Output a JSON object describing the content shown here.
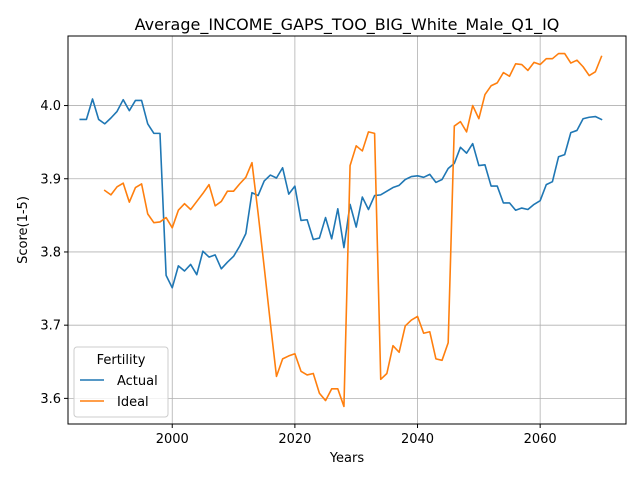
{
  "chart_data": {
    "type": "line",
    "title": "Average_INCOME_GAPS_TOO_BIG_White_Male_Q1_IQ",
    "xlabel": "Years",
    "ylabel": "Score(1-5)",
    "xlim": [
      1983,
      2074
    ],
    "ylim": [
      3.565,
      4.095
    ],
    "xticks": [
      2000,
      2020,
      2040,
      2060
    ],
    "yticks": [
      3.6,
      3.7,
      3.8,
      3.9,
      4.0
    ],
    "ytick_labels": [
      "3.6",
      "3.7",
      "3.8",
      "3.9",
      "4.0"
    ],
    "grid": true,
    "legend": {
      "title": "Fertility",
      "position": "lower-left"
    },
    "series": [
      {
        "name": "Actual",
        "color": "#1f77b4",
        "x": [
          1985,
          1986,
          1987,
          1988,
          1989,
          1990,
          1991,
          1992,
          1993,
          1994,
          1995,
          1996,
          1997,
          1998,
          1999,
          2000,
          2001,
          2002,
          2003,
          2004,
          2005,
          2006,
          2007,
          2008,
          2009,
          2010,
          2011,
          2012,
          2013,
          2014,
          2015,
          2016,
          2017,
          2018,
          2019,
          2020,
          2021,
          2022,
          2023,
          2024,
          2025,
          2026,
          2027,
          2028,
          2029,
          2030,
          2031,
          2032,
          2033,
          2034,
          2035,
          2036,
          2037,
          2038,
          2039,
          2040,
          2041,
          2042,
          2043,
          2044,
          2045,
          2046,
          2047,
          2048,
          2049,
          2050,
          2051,
          2052,
          2053,
          2054,
          2055,
          2056,
          2057,
          2058,
          2059,
          2060,
          2061,
          2062,
          2063,
          2064,
          2065,
          2066,
          2067,
          2068,
          2069,
          2070
        ],
        "values": [
          3.981,
          3.981,
          4.009,
          3.981,
          3.975,
          3.983,
          3.992,
          4.008,
          3.993,
          4.007,
          4.007,
          3.975,
          3.962,
          3.962,
          3.768,
          3.751,
          3.781,
          3.774,
          3.783,
          3.769,
          3.801,
          3.793,
          3.796,
          3.777,
          3.786,
          3.794,
          3.808,
          3.825,
          3.881,
          3.877,
          3.897,
          3.905,
          3.901,
          3.915,
          3.879,
          3.89,
          3.843,
          3.844,
          3.817,
          3.819,
          3.847,
          3.818,
          3.859,
          3.806,
          3.865,
          3.834,
          3.875,
          3.858,
          3.877,
          3.878,
          3.883,
          3.888,
          3.891,
          3.899,
          3.903,
          3.904,
          3.902,
          3.906,
          3.895,
          3.899,
          3.914,
          3.921,
          3.943,
          3.935,
          3.948,
          3.918,
          3.919,
          3.89,
          3.89,
          3.867,
          3.867,
          3.857,
          3.86,
          3.858,
          3.865,
          3.87,
          3.892,
          3.896,
          3.93,
          3.933,
          3.963,
          3.966,
          3.982,
          3.984,
          3.985,
          3.981
        ]
      },
      {
        "name": "Ideal",
        "color": "#ff7f0e",
        "x": [
          1989,
          1990,
          1991,
          1992,
          1993,
          1994,
          1995,
          1996,
          1997,
          1998,
          1999,
          2000,
          2001,
          2002,
          2003,
          2004,
          2005,
          2006,
          2007,
          2008,
          2009,
          2010,
          2011,
          2012,
          2013,
          2014,
          2015,
          2016,
          2017,
          2018,
          2019,
          2020,
          2021,
          2022,
          2023,
          2024,
          2025,
          2026,
          2027,
          2028,
          2029,
          2030,
          2031,
          2032,
          2033,
          2034,
          2035,
          2036,
          2037,
          2038,
          2039,
          2040,
          2041,
          2042,
          2043,
          2044,
          2045,
          2046,
          2047,
          2048,
          2049,
          2050,
          2051,
          2052,
          2053,
          2054,
          2055,
          2056,
          2057,
          2058,
          2059,
          2060,
          2061,
          2062,
          2063,
          2064,
          2065,
          2066,
          2067,
          2068,
          2069,
          2070
        ],
        "values": [
          3.884,
          3.878,
          3.889,
          3.894,
          3.868,
          3.888,
          3.893,
          3.852,
          3.84,
          3.841,
          3.847,
          3.833,
          3.857,
          3.866,
          3.858,
          3.869,
          3.88,
          3.892,
          3.863,
          3.869,
          3.883,
          3.883,
          3.893,
          3.902,
          3.922,
          3.853,
          3.779,
          3.703,
          3.63,
          3.654,
          3.658,
          3.661,
          3.637,
          3.632,
          3.634,
          3.607,
          3.597,
          3.613,
          3.613,
          3.589,
          3.918,
          3.945,
          3.938,
          3.964,
          3.962,
          3.626,
          3.634,
          3.672,
          3.663,
          3.699,
          3.707,
          3.712,
          3.689,
          3.691,
          3.654,
          3.652,
          3.676,
          3.972,
          3.978,
          3.964,
          4.0,
          3.982,
          4.015,
          4.027,
          4.031,
          4.045,
          4.04,
          4.057,
          4.056,
          4.048,
          4.059,
          4.056,
          4.064,
          4.064,
          4.071,
          4.071,
          4.058,
          4.062,
          4.053,
          4.041,
          4.046,
          4.067
        ]
      }
    ]
  }
}
